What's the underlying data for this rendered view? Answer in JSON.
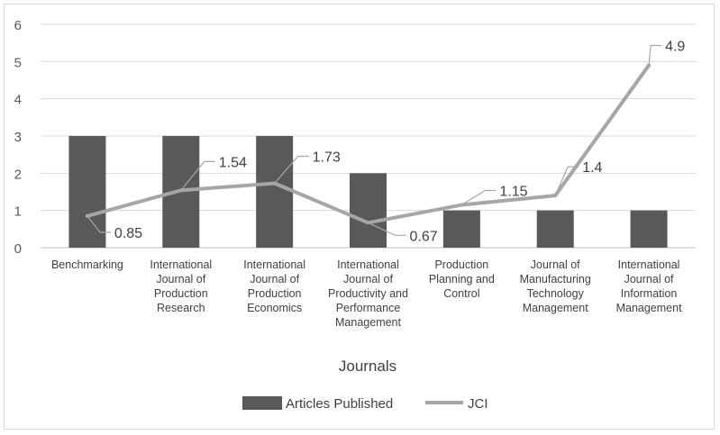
{
  "chart_data": {
    "type": "bar",
    "categories": [
      "Benchmarking",
      "International Journal of Production Research",
      "International Journal of Production Economics",
      "International Journal of Productivity and Performance Management",
      "Production Planning and Control",
      "Journal of Manufacturing Technology Management",
      "International Journal of Information Management"
    ],
    "category_lines": [
      [
        "Benchmarking"
      ],
      [
        "International",
        "Journal of",
        "Production",
        "Research"
      ],
      [
        "International",
        "Journal of",
        "Production",
        "Economics"
      ],
      [
        "International",
        "Journal of",
        "Productivity and",
        "Performance",
        "Management"
      ],
      [
        "Production",
        "Planning and",
        "Control"
      ],
      [
        "Journal of",
        "Manufacturing",
        "Technology",
        "Management"
      ],
      [
        "International",
        "Journal of",
        "Information",
        "Management"
      ]
    ],
    "series": [
      {
        "name": "Articles Published",
        "type": "bar",
        "values": [
          3,
          3,
          3,
          2,
          1,
          1,
          1
        ],
        "color": "#595959"
      },
      {
        "name": "JCI",
        "type": "line",
        "values": [
          0.85,
          1.54,
          1.73,
          0.67,
          1.15,
          1.4,
          4.9
        ],
        "labels": [
          "0.85",
          "1.54",
          "1.73",
          "0.67",
          "1.15",
          "1.4",
          "4.9"
        ],
        "color": "#a6a6a6"
      }
    ],
    "xlabel": "Journals",
    "ylabel": "",
    "ylim": [
      0,
      6
    ],
    "yticks": [
      "0",
      "1",
      "2",
      "3",
      "4",
      "5",
      "6"
    ],
    "grid": true,
    "legend": "bottom"
  }
}
